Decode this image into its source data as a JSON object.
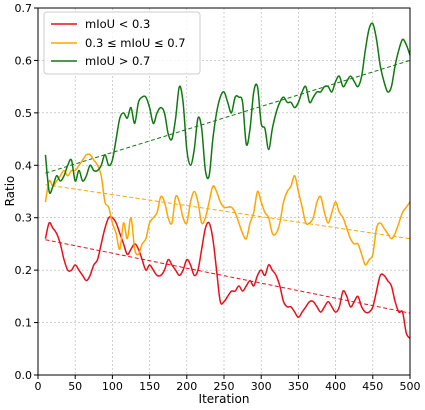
{
  "chart_data": {
    "type": "line",
    "xlabel": "Iteration",
    "ylabel": "Ratio",
    "xlim": [
      0,
      500
    ],
    "ylim": [
      0.0,
      0.7
    ],
    "x_ticks": [
      "0",
      "50",
      "100",
      "150",
      "200",
      "250",
      "300",
      "350",
      "400",
      "450",
      "500"
    ],
    "y_ticks": [
      "0.0",
      "0.1",
      "0.2",
      "0.3",
      "0.4",
      "0.5",
      "0.6",
      "0.7"
    ],
    "grid": true,
    "legend_position": "top-left",
    "series": [
      {
        "name": "mIoU < 0.3",
        "color": "#e8101b",
        "x": [
          10,
          15,
          20,
          25,
          30,
          35,
          40,
          45,
          50,
          55,
          60,
          65,
          70,
          75,
          80,
          85,
          90,
          95,
          100,
          105,
          110,
          115,
          120,
          125,
          130,
          135,
          140,
          145,
          150,
          155,
          160,
          165,
          170,
          175,
          180,
          185,
          190,
          195,
          200,
          205,
          210,
          215,
          220,
          225,
          230,
          235,
          240,
          245,
          250,
          255,
          260,
          265,
          270,
          275,
          280,
          285,
          290,
          295,
          300,
          305,
          310,
          315,
          320,
          325,
          330,
          335,
          340,
          345,
          350,
          355,
          360,
          365,
          370,
          375,
          380,
          385,
          390,
          395,
          400,
          405,
          410,
          415,
          420,
          425,
          430,
          435,
          440,
          445,
          450,
          455,
          460,
          465,
          470,
          475,
          480,
          485,
          490,
          495,
          500
        ],
        "values": [
          0.26,
          0.29,
          0.28,
          0.27,
          0.25,
          0.22,
          0.2,
          0.2,
          0.21,
          0.2,
          0.19,
          0.18,
          0.19,
          0.21,
          0.22,
          0.25,
          0.28,
          0.3,
          0.3,
          0.29,
          0.27,
          0.25,
          0.23,
          0.24,
          0.25,
          0.24,
          0.22,
          0.2,
          0.21,
          0.2,
          0.19,
          0.19,
          0.2,
          0.22,
          0.21,
          0.2,
          0.19,
          0.2,
          0.22,
          0.21,
          0.19,
          0.2,
          0.24,
          0.28,
          0.29,
          0.26,
          0.2,
          0.14,
          0.14,
          0.15,
          0.16,
          0.16,
          0.17,
          0.16,
          0.17,
          0.18,
          0.17,
          0.19,
          0.2,
          0.19,
          0.21,
          0.2,
          0.19,
          0.17,
          0.14,
          0.13,
          0.13,
          0.12,
          0.11,
          0.12,
          0.13,
          0.14,
          0.14,
          0.13,
          0.12,
          0.13,
          0.14,
          0.13,
          0.12,
          0.13,
          0.16,
          0.15,
          0.13,
          0.14,
          0.15,
          0.13,
          0.12,
          0.12,
          0.13,
          0.16,
          0.19,
          0.19,
          0.18,
          0.17,
          0.14,
          0.12,
          0.12,
          0.08,
          0.07
        ]
      },
      {
        "name": "0.3 ≤ mIoU ≤ 0.7",
        "color": "#ffa500",
        "x": [
          10,
          15,
          20,
          25,
          30,
          35,
          40,
          45,
          50,
          55,
          60,
          65,
          70,
          75,
          80,
          85,
          90,
          95,
          100,
          105,
          110,
          115,
          120,
          125,
          130,
          135,
          140,
          145,
          150,
          155,
          160,
          165,
          170,
          175,
          180,
          185,
          190,
          195,
          200,
          205,
          210,
          215,
          220,
          225,
          230,
          235,
          240,
          245,
          250,
          255,
          260,
          265,
          270,
          275,
          280,
          285,
          290,
          295,
          300,
          305,
          310,
          315,
          320,
          325,
          330,
          335,
          340,
          345,
          350,
          355,
          360,
          365,
          370,
          375,
          380,
          385,
          390,
          395,
          400,
          405,
          410,
          415,
          420,
          425,
          430,
          435,
          440,
          445,
          450,
          455,
          460,
          465,
          470,
          475,
          480,
          485,
          490,
          495,
          500
        ],
        "values": [
          0.33,
          0.37,
          0.36,
          0.37,
          0.38,
          0.39,
          0.38,
          0.39,
          0.39,
          0.4,
          0.41,
          0.42,
          0.42,
          0.41,
          0.4,
          0.38,
          0.33,
          0.32,
          0.29,
          0.27,
          0.24,
          0.29,
          0.26,
          0.3,
          0.24,
          0.23,
          0.25,
          0.26,
          0.29,
          0.3,
          0.31,
          0.34,
          0.33,
          0.3,
          0.29,
          0.34,
          0.33,
          0.3,
          0.29,
          0.33,
          0.35,
          0.33,
          0.29,
          0.3,
          0.33,
          0.36,
          0.35,
          0.33,
          0.32,
          0.32,
          0.32,
          0.31,
          0.29,
          0.27,
          0.26,
          0.29,
          0.31,
          0.35,
          0.33,
          0.31,
          0.3,
          0.27,
          0.27,
          0.29,
          0.33,
          0.35,
          0.36,
          0.38,
          0.35,
          0.32,
          0.29,
          0.29,
          0.3,
          0.33,
          0.34,
          0.31,
          0.29,
          0.31,
          0.33,
          0.31,
          0.3,
          0.28,
          0.26,
          0.25,
          0.25,
          0.23,
          0.21,
          0.22,
          0.23,
          0.28,
          0.29,
          0.28,
          0.27,
          0.26,
          0.27,
          0.29,
          0.31,
          0.32,
          0.33
        ]
      },
      {
        "name": "mIoU > 0.7",
        "color": "#0f7a0f",
        "x": [
          10,
          15,
          20,
          25,
          30,
          35,
          40,
          45,
          50,
          55,
          60,
          65,
          70,
          75,
          80,
          85,
          90,
          95,
          100,
          105,
          110,
          115,
          120,
          125,
          130,
          135,
          140,
          145,
          150,
          155,
          160,
          165,
          170,
          175,
          180,
          185,
          190,
          195,
          200,
          205,
          210,
          215,
          220,
          225,
          230,
          235,
          240,
          245,
          250,
          255,
          260,
          265,
          270,
          275,
          280,
          285,
          290,
          295,
          300,
          305,
          310,
          315,
          320,
          325,
          330,
          335,
          340,
          345,
          350,
          355,
          360,
          365,
          370,
          375,
          380,
          385,
          390,
          395,
          400,
          405,
          410,
          415,
          420,
          425,
          430,
          435,
          440,
          445,
          450,
          455,
          460,
          465,
          470,
          475,
          480,
          485,
          490,
          495,
          500
        ],
        "values": [
          0.42,
          0.35,
          0.36,
          0.38,
          0.37,
          0.38,
          0.4,
          0.41,
          0.37,
          0.39,
          0.37,
          0.38,
          0.4,
          0.39,
          0.39,
          0.4,
          0.42,
          0.4,
          0.41,
          0.45,
          0.49,
          0.5,
          0.49,
          0.51,
          0.48,
          0.52,
          0.53,
          0.53,
          0.51,
          0.48,
          0.5,
          0.51,
          0.5,
          0.46,
          0.45,
          0.49,
          0.55,
          0.52,
          0.43,
          0.4,
          0.43,
          0.49,
          0.47,
          0.39,
          0.38,
          0.45,
          0.5,
          0.53,
          0.54,
          0.52,
          0.5,
          0.53,
          0.53,
          0.52,
          0.44,
          0.47,
          0.54,
          0.55,
          0.48,
          0.47,
          0.43,
          0.47,
          0.5,
          0.52,
          0.53,
          0.52,
          0.52,
          0.51,
          0.52,
          0.54,
          0.55,
          0.52,
          0.53,
          0.54,
          0.54,
          0.55,
          0.55,
          0.54,
          0.56,
          0.57,
          0.55,
          0.56,
          0.57,
          0.56,
          0.55,
          0.57,
          0.62,
          0.66,
          0.67,
          0.64,
          0.59,
          0.56,
          0.54,
          0.55,
          0.59,
          0.62,
          0.64,
          0.63,
          0.61
        ]
      }
    ],
    "trendlines": [
      {
        "color": "#e8101b",
        "x": [
          10,
          500
        ],
        "y": [
          0.258,
          0.118
        ]
      },
      {
        "color": "#ffa500",
        "x": [
          10,
          500
        ],
        "y": [
          0.363,
          0.26
        ]
      },
      {
        "color": "#0f7a0f",
        "x": [
          10,
          500
        ],
        "y": [
          0.385,
          0.6
        ]
      }
    ]
  }
}
